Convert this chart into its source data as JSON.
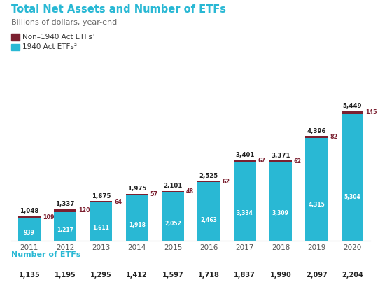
{
  "title": "Total Net Assets and Number of ETFs",
  "subtitle": "Billions of dollars, year-end",
  "years": [
    "2011",
    "2012",
    "2013",
    "2014",
    "2015",
    "2016",
    "2017",
    "2018",
    "2019",
    "2020"
  ],
  "act1940": [
    939,
    1217,
    1611,
    1918,
    2052,
    2463,
    3334,
    3309,
    4315,
    5304
  ],
  "non1940": [
    109,
    120,
    64,
    57,
    48,
    62,
    67,
    62,
    82,
    145
  ],
  "totals": [
    1048,
    1337,
    1675,
    1975,
    2101,
    2525,
    3401,
    3371,
    4396,
    5449
  ],
  "num_etfs": [
    "1,135",
    "1,195",
    "1,295",
    "1,412",
    "1,597",
    "1,718",
    "1,837",
    "1,990",
    "2,097",
    "2,204"
  ],
  "color_1940": "#29B8D4",
  "color_non1940": "#7B2030",
  "color_title": "#29B8D4",
  "color_subtitle": "#666666",
  "color_num_etfs_label": "#29B8D4",
  "color_num_etfs_values": "#222222",
  "color_total_label": "#222222",
  "color_1940_label": "#ffffff",
  "color_non1940_label": "#7B2030",
  "legend_non1940": "Non–1940 Act ETFs¹",
  "legend_1940": "1940 Act ETFs²",
  "background_color": "#ffffff",
  "ylim_max": 6400
}
